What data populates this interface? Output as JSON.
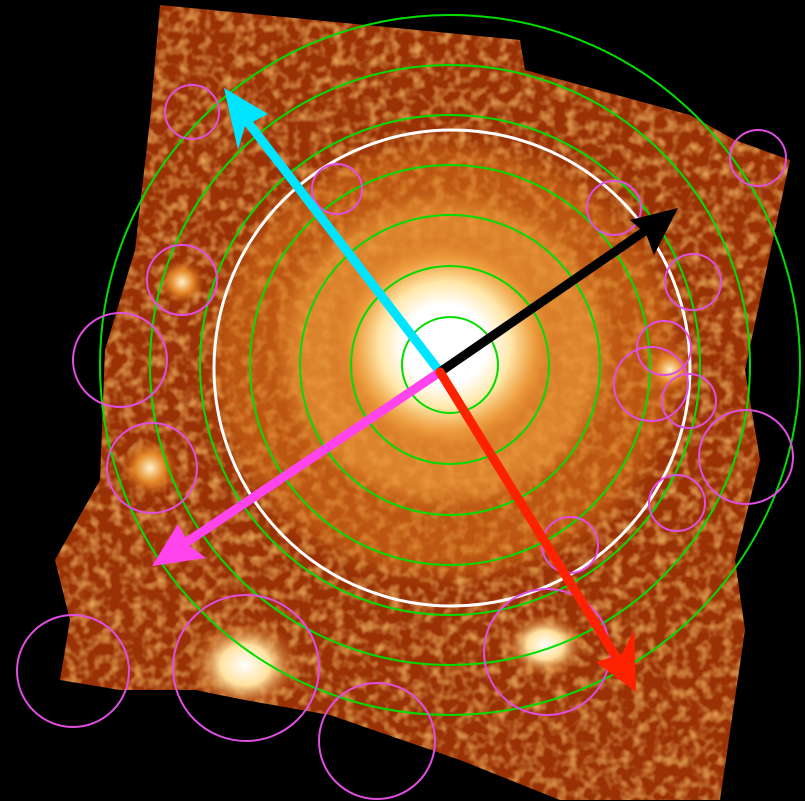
{
  "image": {
    "background_color": "#000000",
    "map_colors": [
      "#3a0700",
      "#8a2400",
      "#c65a10",
      "#f0a040",
      "#ffe9b0",
      "#ffffff"
    ],
    "description_tags": [
      "x-ray-image",
      "heat-colormap",
      "region-overlays"
    ]
  },
  "overlays": {
    "annulus_color": "#00dd00",
    "white_circle_color": "#ffffff",
    "source_region_color": "#e04ee0",
    "annulus_count": 7,
    "source_region_count": 18
  },
  "arrows": [
    {
      "name": "cyan-arrow",
      "color": "#00e5ff"
    },
    {
      "name": "black-arrow",
      "color": "#000000"
    },
    {
      "name": "magenta-arrow",
      "color": "#ff44ee"
    },
    {
      "name": "red-arrow",
      "color": "#ff2200"
    }
  ]
}
